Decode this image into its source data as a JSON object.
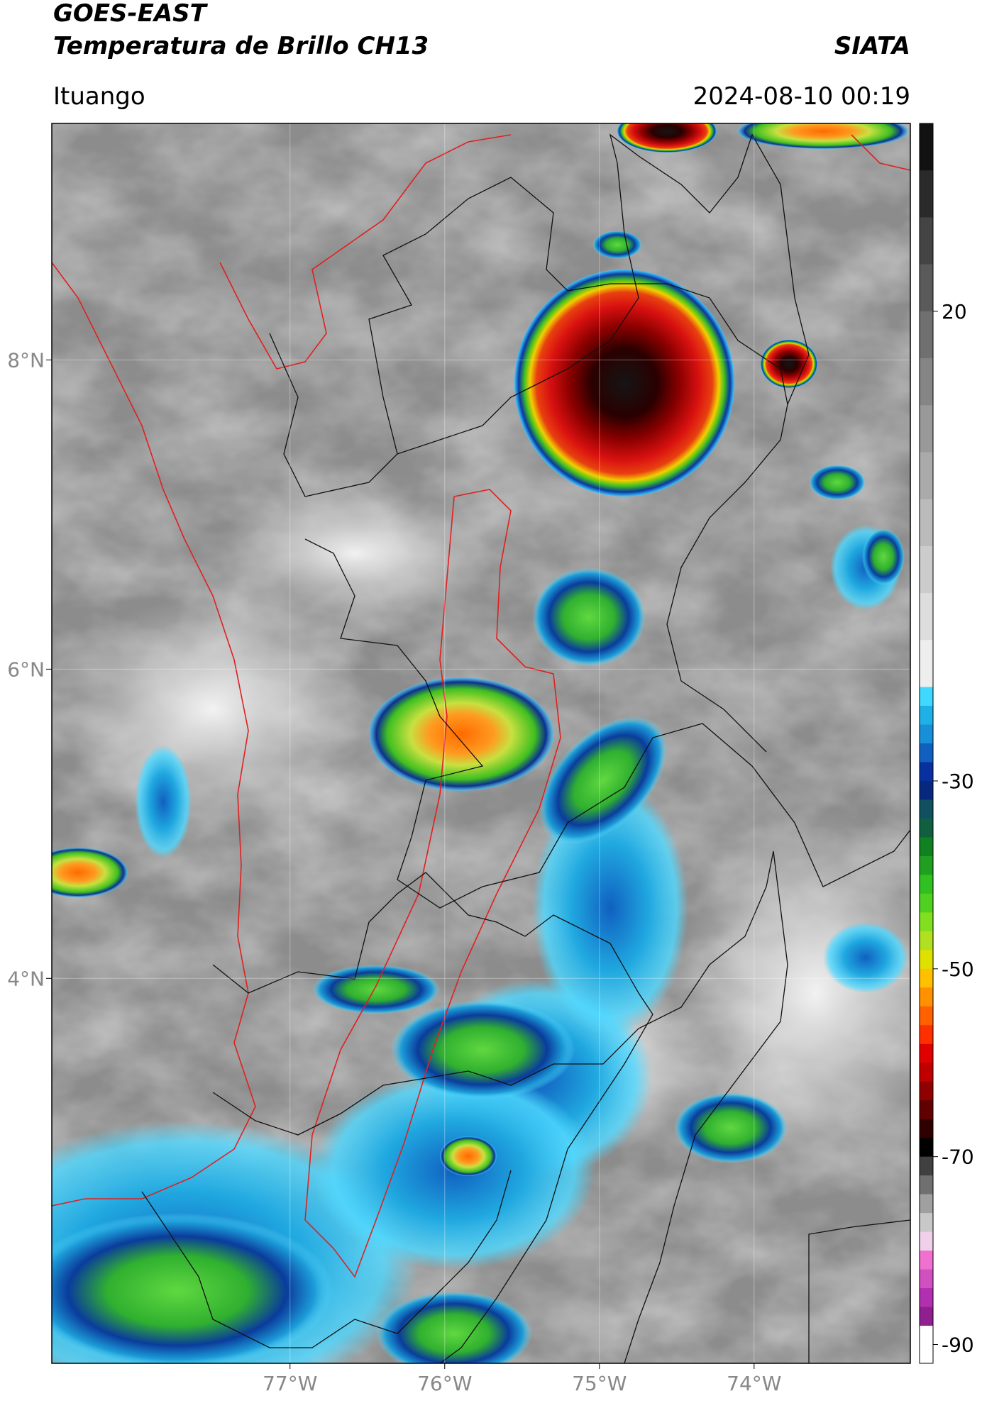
{
  "header": {
    "title": "GOES-EAST",
    "subtitle": "Temperatura de Brillo CH13",
    "organization": "SIATA",
    "location": "Ituango",
    "datetime": "2024-08-10 00:19"
  },
  "map": {
    "xlim": [
      -78.54,
      -72.99
    ],
    "ylim": [
      1.51,
      9.53
    ],
    "xticks": [
      {
        "value": -77,
        "label": "77°W"
      },
      {
        "value": -76,
        "label": "76°W"
      },
      {
        "value": -75,
        "label": "75°W"
      },
      {
        "value": -74,
        "label": "74°W"
      }
    ],
    "yticks": [
      {
        "value": 8,
        "label": "8°N"
      },
      {
        "value": 6,
        "label": "6°N"
      },
      {
        "value": 4,
        "label": "4°N"
      }
    ]
  },
  "colorbar": {
    "lim": [
      40,
      -92
    ],
    "ticks": [
      20,
      -30,
      -50,
      -70,
      -90
    ],
    "stops": [
      {
        "value": 40,
        "color": "#111111"
      },
      {
        "value": 35,
        "color": "#2a2a2a"
      },
      {
        "value": 30,
        "color": "#444444"
      },
      {
        "value": 25,
        "color": "#5a5a5a"
      },
      {
        "value": 20,
        "color": "#707070"
      },
      {
        "value": 15,
        "color": "#858585"
      },
      {
        "value": 10,
        "color": "#999999"
      },
      {
        "value": 5,
        "color": "#aaaaaa"
      },
      {
        "value": 0,
        "color": "#bbbbbb"
      },
      {
        "value": -5,
        "color": "#cccccc"
      },
      {
        "value": -10,
        "color": "#dddddd"
      },
      {
        "value": -15,
        "color": "#eeeeee"
      },
      {
        "value": -20,
        "color": "#40d8ff"
      },
      {
        "value": -22,
        "color": "#20b0e8"
      },
      {
        "value": -24,
        "color": "#1890d8"
      },
      {
        "value": -26,
        "color": "#1060c0"
      },
      {
        "value": -28,
        "color": "#0830a0"
      },
      {
        "value": -30,
        "color": "#082880"
      },
      {
        "value": -32,
        "color": "#105060"
      },
      {
        "value": -34,
        "color": "#106040"
      },
      {
        "value": -36,
        "color": "#108020"
      },
      {
        "value": -38,
        "color": "#20a020"
      },
      {
        "value": -40,
        "color": "#30c020"
      },
      {
        "value": -42,
        "color": "#50d020"
      },
      {
        "value": -44,
        "color": "#80e020"
      },
      {
        "value": -46,
        "color": "#b0e020"
      },
      {
        "value": -48,
        "color": "#e0e000"
      },
      {
        "value": -50,
        "color": "#ffc000"
      },
      {
        "value": -52,
        "color": "#ff9000"
      },
      {
        "value": -54,
        "color": "#ff6000"
      },
      {
        "value": -56,
        "color": "#ff3000"
      },
      {
        "value": -58,
        "color": "#e00000"
      },
      {
        "value": -60,
        "color": "#c00000"
      },
      {
        "value": -62,
        "color": "#900000"
      },
      {
        "value": -64,
        "color": "#600000"
      },
      {
        "value": -66,
        "color": "#300000"
      },
      {
        "value": -68,
        "color": "#000000"
      },
      {
        "value": -70,
        "color": "#404040"
      },
      {
        "value": -72,
        "color": "#707070"
      },
      {
        "value": -74,
        "color": "#a0a0a0"
      },
      {
        "value": -76,
        "color": "#c8c8c8"
      },
      {
        "value": -78,
        "color": "#f0d0e8"
      },
      {
        "value": -80,
        "color": "#f070d0"
      },
      {
        "value": -82,
        "color": "#d050c0"
      },
      {
        "value": -84,
        "color": "#b030b0"
      },
      {
        "value": -86,
        "color": "#902090"
      },
      {
        "value": -88,
        "color": "#ffffff"
      }
    ]
  }
}
